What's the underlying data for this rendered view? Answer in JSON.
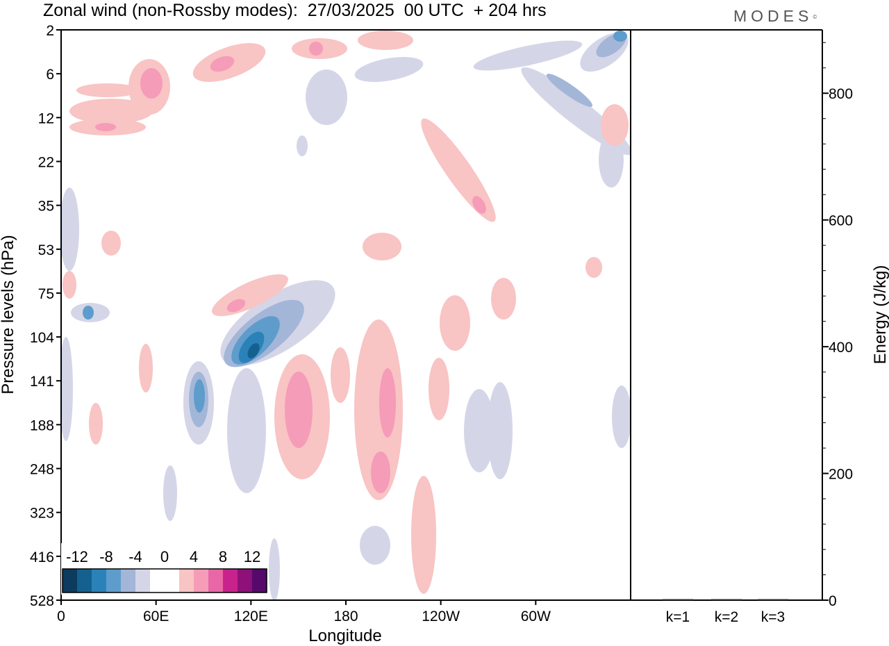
{
  "title": "Zonal wind (non-Rossby modes):  27/03/2025  00 UTC  + 204 hrs",
  "brand": "MODES",
  "brand_mark": "©",
  "chart_data": [
    {
      "type": "heatmap",
      "xlabel": "Longitude",
      "ylabel": "Pressure levels (hPa)",
      "x_ticks": [
        "0",
        "60E",
        "120E",
        "180",
        "120W",
        "60W"
      ],
      "y_ticks": [
        "2",
        "6",
        "12",
        "22",
        "35",
        "53",
        "75",
        "104",
        "141",
        "188",
        "248",
        "323",
        "416",
        "528"
      ],
      "colorbar": {
        "labels": [
          "-12",
          "-8",
          "-4",
          "0",
          "4",
          "8",
          "12"
        ],
        "colors": [
          "#0d3b5e",
          "#14618f",
          "#2a82b8",
          "#5e9ccc",
          "#a3b6d8",
          "#d4d6e8",
          "#ffffff",
          "#ffffff",
          "#f8c4c4",
          "#f59cb8",
          "#e967a6",
          "#c8238c",
          "#8e1079",
          "#55096b"
        ]
      },
      "anomalies": [
        {
          "lon": 124,
          "level": "118",
          "value": -12
        },
        {
          "lon": 90,
          "level": "158",
          "value": -8
        },
        {
          "lon": 150,
          "level": "170",
          "value": 8
        },
        {
          "lon": 205,
          "level": "215",
          "value": 8
        },
        {
          "lon": 345,
          "level": "2",
          "value": -4
        },
        {
          "lon": 100,
          "level": "83",
          "value": 4
        },
        {
          "lon": 50,
          "level": "8",
          "value": 4
        },
        {
          "lon": 270,
          "level": "35",
          "value": 4
        }
      ]
    },
    {
      "type": "bar",
      "categories": [
        "k=1",
        "k=2",
        "k=3"
      ],
      "values": [
        1.5,
        1.0,
        1.0
      ],
      "ylabel": "Energy (J/kg)",
      "ylim": [
        0,
        900
      ],
      "y_ticks": [
        0,
        200,
        400,
        600,
        800
      ]
    }
  ]
}
